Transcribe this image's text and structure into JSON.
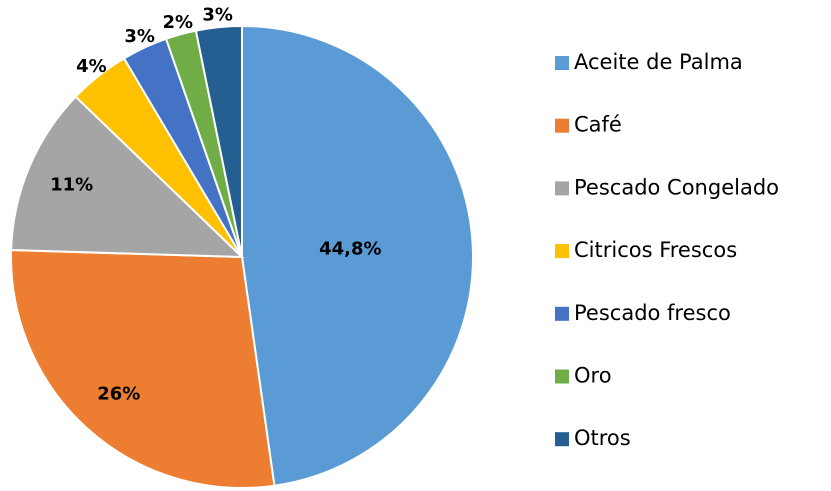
{
  "chart_data": {
    "type": "pie",
    "categories": [
      "Aceite de Palma",
      "Café",
      "Pescado Congelado",
      "Citricos Frescos",
      "Pescado fresco",
      "Oro",
      "Otros"
    ],
    "values": [
      44.8,
      26,
      11,
      4,
      3,
      2,
      3
    ],
    "value_labels": [
      "44,8%",
      "26%",
      "11%",
      "4%",
      "3%",
      "2%",
      "3%"
    ],
    "colors": [
      "#5b9bd5",
      "#ed7d31",
      "#a5a5a5",
      "#ffc000",
      "#4472c4",
      "#70ad47",
      "#255e91"
    ],
    "legend": "right"
  }
}
